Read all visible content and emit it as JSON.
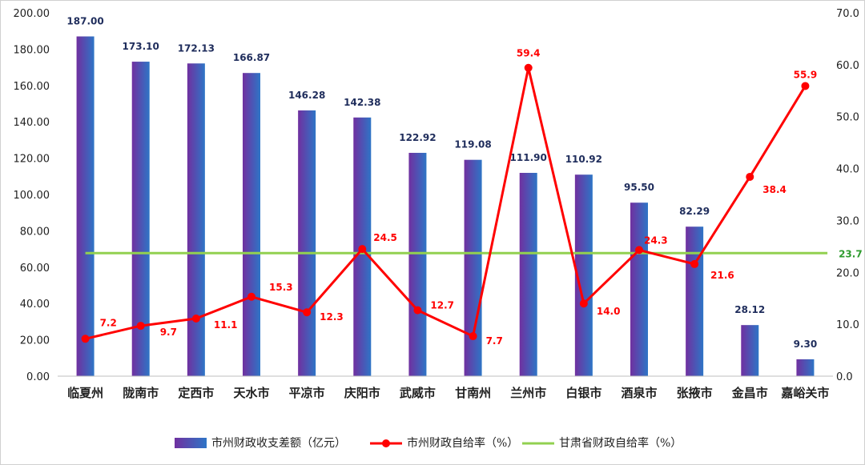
{
  "colors": {
    "bar_top": "#7030a0",
    "bar_bottom": "#2e75c6",
    "rate_line": "#ff0000",
    "province_line": "#92d050",
    "province_label": "#2e9b2e",
    "bar_label": "#1f2d5c"
  },
  "chart_data": {
    "type": "bar",
    "categories": [
      "临夏州",
      "陇南市",
      "定西市",
      "天水市",
      "平凉市",
      "庆阳市",
      "武威市",
      "甘南州",
      "兰州市",
      "白银市",
      "酒泉市",
      "张掖市",
      "金昌市",
      "嘉峪关市"
    ],
    "series": [
      {
        "name": "市州财政收支差额（亿元）",
        "type": "bar",
        "axis": "left",
        "values": [
          187.0,
          173.1,
          172.13,
          166.87,
          146.28,
          142.38,
          122.92,
          119.08,
          111.9,
          110.92,
          95.5,
          82.29,
          28.12,
          9.3
        ],
        "labels": [
          "187.00",
          "173.10",
          "172.13",
          "166.87",
          "146.28",
          "142.38",
          "122.92",
          "119.08",
          "111.90",
          "110.92",
          "95.50",
          "82.29",
          "28.12",
          "9.30"
        ]
      },
      {
        "name": "市州财政自给率（%）",
        "type": "line",
        "axis": "right",
        "values": [
          7.2,
          9.7,
          11.1,
          15.3,
          12.3,
          24.5,
          12.7,
          7.7,
          59.4,
          14.0,
          24.3,
          21.6,
          38.4,
          55.9
        ],
        "labels": [
          "7.2",
          "9.7",
          "11.1",
          "15.3",
          "12.3",
          "24.5",
          "12.7",
          "7.7",
          "59.4",
          "14.0",
          "24.3",
          "21.6",
          "38.4",
          "55.9"
        ]
      },
      {
        "name": "甘肃省财政自给率（%）",
        "type": "line",
        "axis": "right",
        "value": 23.7,
        "label": "23.7"
      }
    ],
    "y_left": {
      "ylim": [
        0,
        200
      ],
      "ticks": [
        "0.00",
        "20.00",
        "40.00",
        "60.00",
        "80.00",
        "100.00",
        "120.00",
        "140.00",
        "160.00",
        "180.00",
        "200.00"
      ]
    },
    "y_right": {
      "ylim": [
        0,
        70
      ],
      "ticks": [
        "0.0",
        "10.0",
        "20.0",
        "30.0",
        "40.0",
        "50.0",
        "60.0",
        "70.0"
      ]
    },
    "grid": false,
    "legend_position": "bottom"
  }
}
